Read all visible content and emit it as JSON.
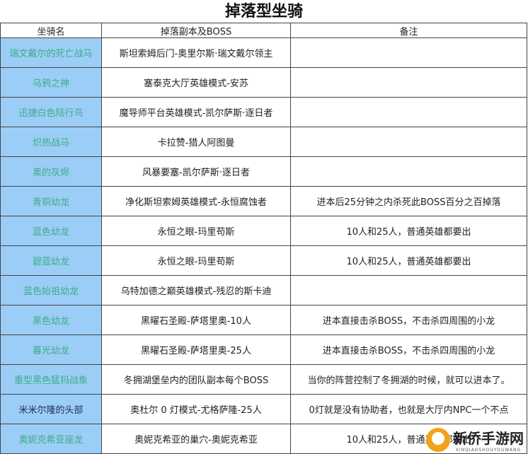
{
  "title": "掉落型坐骑",
  "headers": [
    "坐骑名",
    "掉落副本及BOSS",
    "备注"
  ],
  "rows": [
    {
      "name": "瑞文戴尔的死亡战马",
      "source": "斯坦索姆后门-奥里尔斯·瑞文戴尔领主",
      "note": ""
    },
    {
      "name": "乌鸦之神",
      "source": "塞泰克大厅英雄模式-安苏",
      "note": ""
    },
    {
      "name": "迅捷白色陆行鸟",
      "source": "魔导师平台英雄模式-凯尔萨斯·逐日者",
      "note": ""
    },
    {
      "name": "炽热战马",
      "source": "卡拉赞-猎人阿图曼",
      "note": ""
    },
    {
      "name": "奥的灰烬",
      "source": "风暴要塞-凯尔萨斯·逐日者",
      "note": ""
    },
    {
      "name": "青铜幼龙",
      "source": "净化斯坦索姆英雄模式-永恒腐蚀者",
      "note": "进本后25分钟之内杀死此BOSS百分之百掉落"
    },
    {
      "name": "蓝色幼龙",
      "source": "永恒之眼-玛里苟斯",
      "note": "10人和25人，普通英雄都要出"
    },
    {
      "name": "碧蓝幼龙",
      "source": "永恒之眼-玛里苟斯",
      "note": "10人和25人，普通英雄都要出"
    },
    {
      "name": "蓝色始祖幼龙",
      "source": "乌特加德之巅英雄模式-残忍的斯卡迪",
      "note": ""
    },
    {
      "name": "黑色幼龙",
      "source": "黑曜石圣殿-萨塔里奥-10人",
      "note": "进本直接击杀BOSS，不击杀四周围的小龙"
    },
    {
      "name": "暮光幼龙",
      "source": "黑曜石圣殿-萨塔里奥-25人",
      "note": "进本直接击杀BOSS，不击杀四周围的小龙"
    },
    {
      "name": "重型黑色猛犸战象",
      "source": "冬拥湖堡垒内的团队副本每个BOSS",
      "note": "当你的阵营控制了冬拥湖的时候，就可以进本了。"
    },
    {
      "name": "米米尔隆的头部",
      "source": "奥杜尔 0 灯模式-尤格萨隆-25人",
      "note": "0灯就是没有协助者，也就是大厅内NPC一个不点",
      "dark": true
    },
    {
      "name": "奥妮克希亚座龙",
      "source": "奥妮克希亚的巢穴-奥妮克希亚",
      "note": "10人和25人，普通英雄都要出"
    }
  ],
  "watermark": {
    "text": "新侨手游网",
    "subtext": "XINQIAOSHOUYOUWANG"
  },
  "colors": {
    "name_bg": "#9ccdf7",
    "name_text": "#3aae86",
    "name_text_dark": "#1f2e55"
  }
}
